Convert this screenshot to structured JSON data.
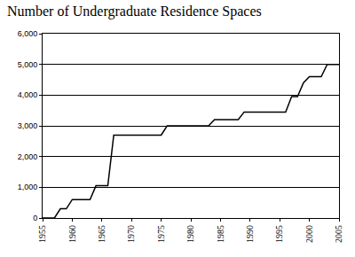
{
  "chart_data": {
    "type": "line",
    "title": "Number of Undergraduate Residence Spaces",
    "x": [
      1955,
      1956,
      1957,
      1958,
      1959,
      1960,
      1961,
      1962,
      1963,
      1964,
      1965,
      1966,
      1967,
      1968,
      1969,
      1970,
      1971,
      1972,
      1973,
      1974,
      1975,
      1976,
      1977,
      1978,
      1979,
      1980,
      1981,
      1982,
      1983,
      1984,
      1985,
      1986,
      1987,
      1988,
      1989,
      1990,
      1991,
      1992,
      1993,
      1994,
      1995,
      1996,
      1997,
      1998,
      1999,
      2000,
      2001,
      2002,
      2003,
      2004,
      2005
    ],
    "values": [
      0,
      0,
      0,
      300,
      300,
      600,
      600,
      600,
      600,
      1050,
      1050,
      1050,
      2700,
      2700,
      2700,
      2700,
      2700,
      2700,
      2700,
      2700,
      2700,
      3000,
      3000,
      3000,
      3000,
      3000,
      3000,
      3000,
      3000,
      3200,
      3200,
      3200,
      3200,
      3200,
      3450,
      3450,
      3450,
      3450,
      3450,
      3450,
      3450,
      3450,
      3950,
      3950,
      4400,
      4600,
      4600,
      4600,
      5000,
      5000,
      5000
    ],
    "color": "#000000",
    "xlim": [
      1955,
      2005
    ],
    "xticks": [
      1955,
      1960,
      1965,
      1970,
      1975,
      1980,
      1985,
      1990,
      1995,
      2000,
      2005
    ],
    "ylim": [
      0,
      6000
    ],
    "yticks": [
      0,
      {
        "value": 1000,
        "label": "1,000"
      },
      {
        "value": 2000,
        "label": "2,000"
      },
      {
        "value": 3000,
        "label": "3,000"
      },
      {
        "value": 4000,
        "label": "4,000"
      },
      {
        "value": 5000,
        "label": "5,000"
      },
      {
        "value": 6000,
        "label": "6,000"
      }
    ],
    "grid": true
  }
}
